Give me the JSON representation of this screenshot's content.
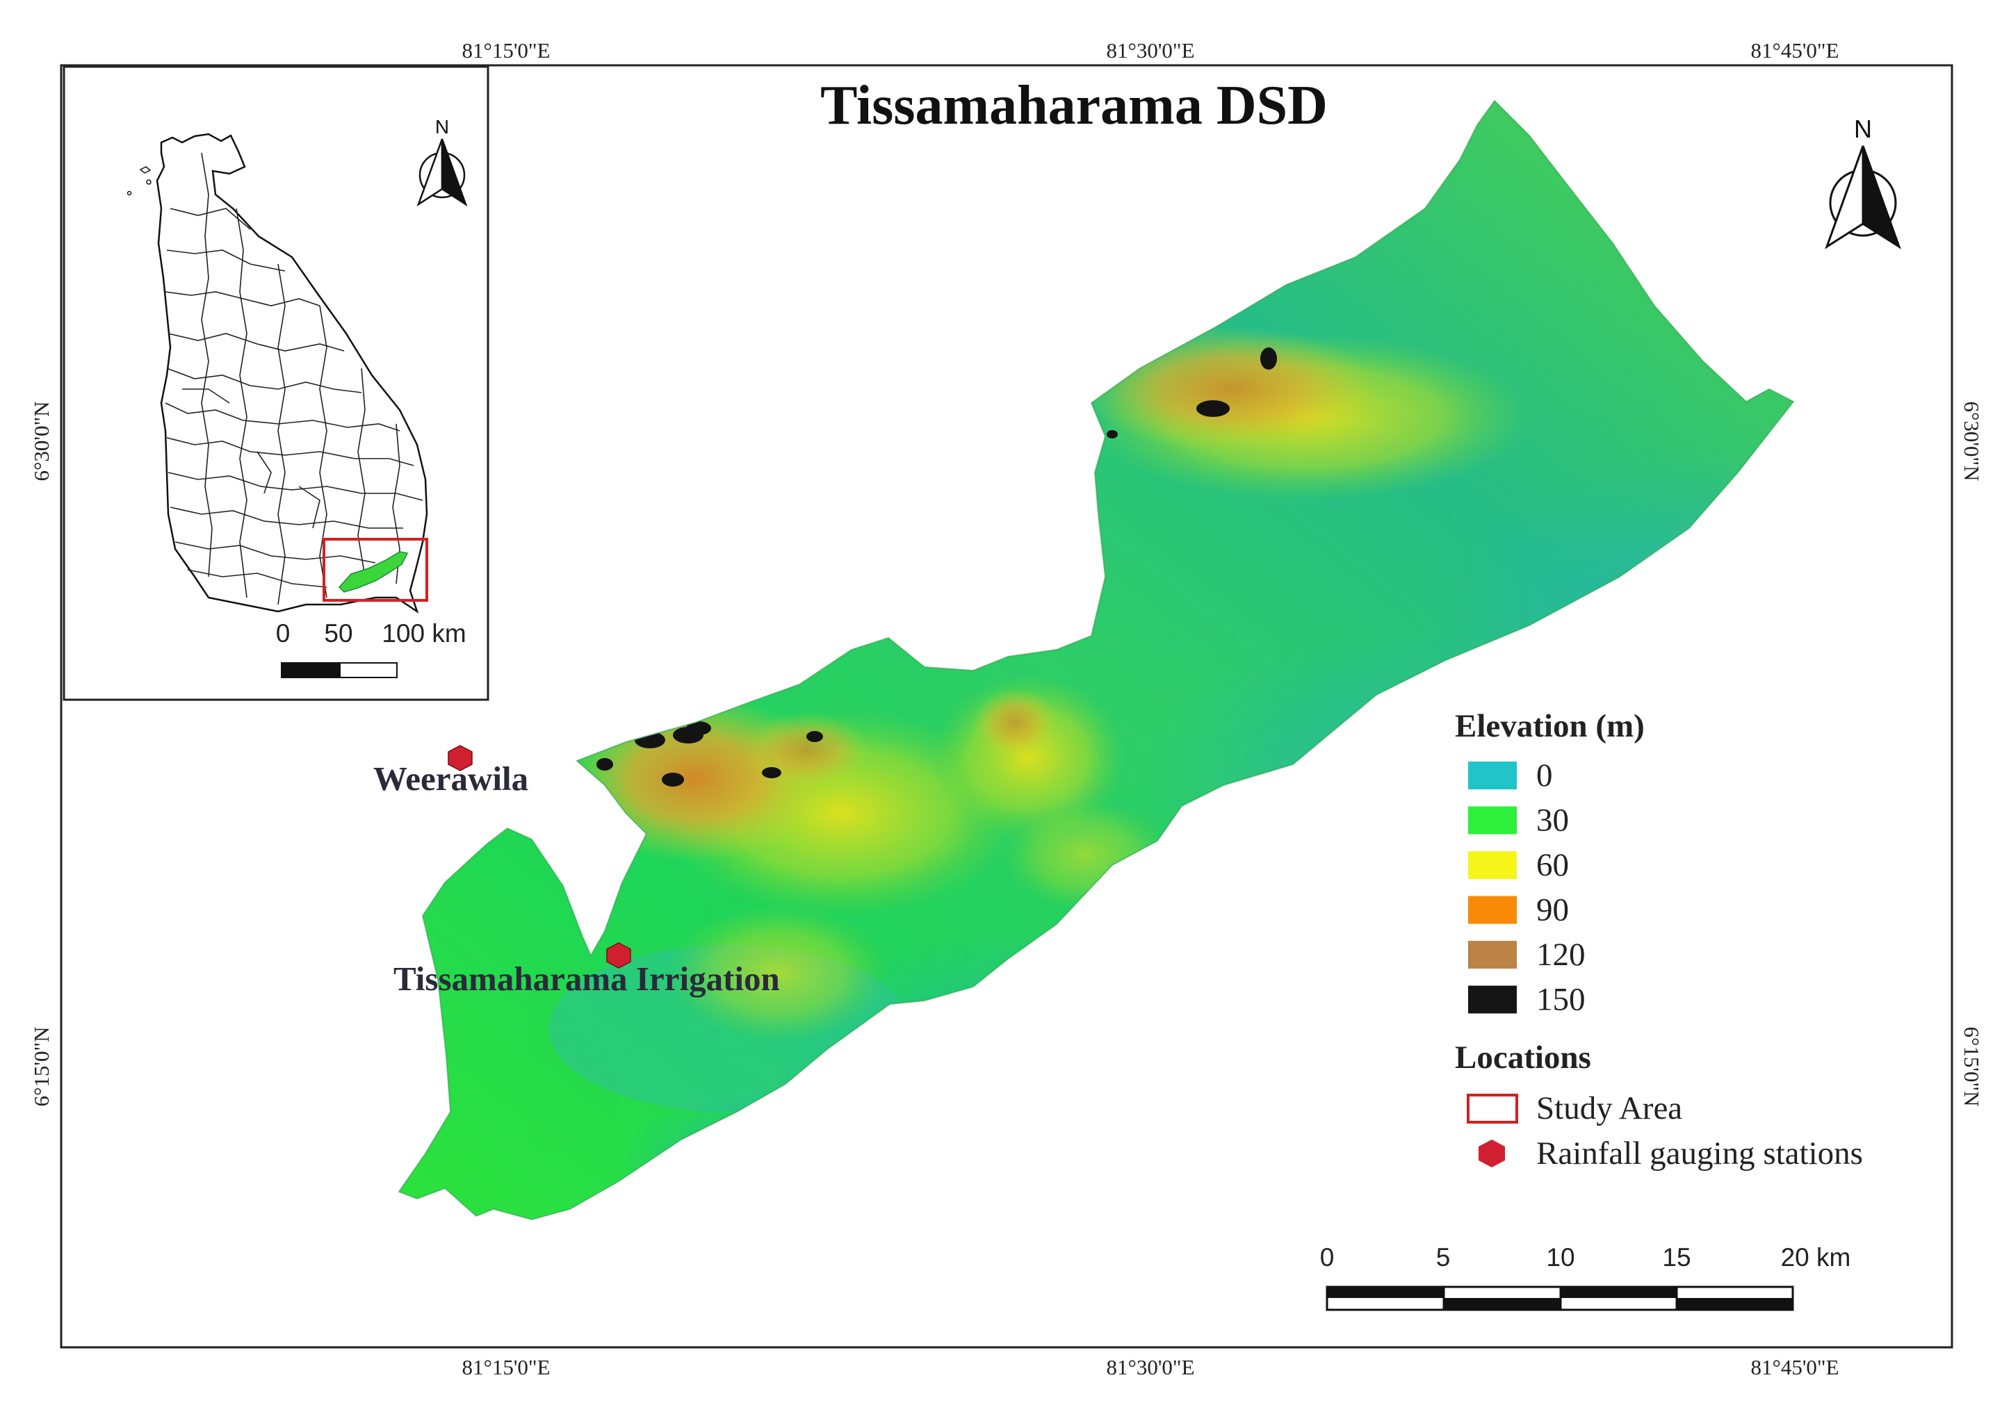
{
  "map": {
    "title": "Tissamaharama DSD",
    "north_label": "N",
    "graticule": {
      "top": [
        "81°15'0\"E",
        "81°30'0\"E",
        "81°45'0\"E"
      ],
      "bottom": [
        "81°15'0\"E",
        "81°30'0\"E",
        "81°45'0\"E"
      ],
      "left": [
        "6°30'0\"N",
        "6°15'0\"N"
      ],
      "right": [
        "6°30'0\"N",
        "6°15'0\"N"
      ]
    },
    "places": [
      {
        "name": "Weerawila"
      },
      {
        "name": "Tissamaharama Irrigation"
      }
    ],
    "legend": {
      "elevation_title": "Elevation (m)",
      "elevation_classes": [
        {
          "label": "0",
          "color": "#21c4c8"
        },
        {
          "label": "30",
          "color": "#2ef03a"
        },
        {
          "label": "60",
          "color": "#f6f51a"
        },
        {
          "label": "90",
          "color": "#f88a07"
        },
        {
          "label": "120",
          "color": "#bd8245"
        },
        {
          "label": "150",
          "color": "#151515"
        }
      ],
      "locations_title": "Locations",
      "locations": [
        {
          "label": "Study Area",
          "symbol": "red-outline-rectangle",
          "color": "#d42020"
        },
        {
          "label": "Rainfall gauging stations",
          "symbol": "red-hexagon",
          "color": "#d02030"
        }
      ]
    },
    "scale_bar": {
      "labels": [
        "0",
        "5",
        "10",
        "15",
        "20 km"
      ]
    }
  },
  "inset": {
    "north_label": "N",
    "scale_bar": {
      "labels": [
        "0",
        "50",
        "100 km"
      ]
    }
  },
  "colors": {
    "frame": "#222222",
    "station": "#d02030",
    "study_area": "#d42020"
  }
}
